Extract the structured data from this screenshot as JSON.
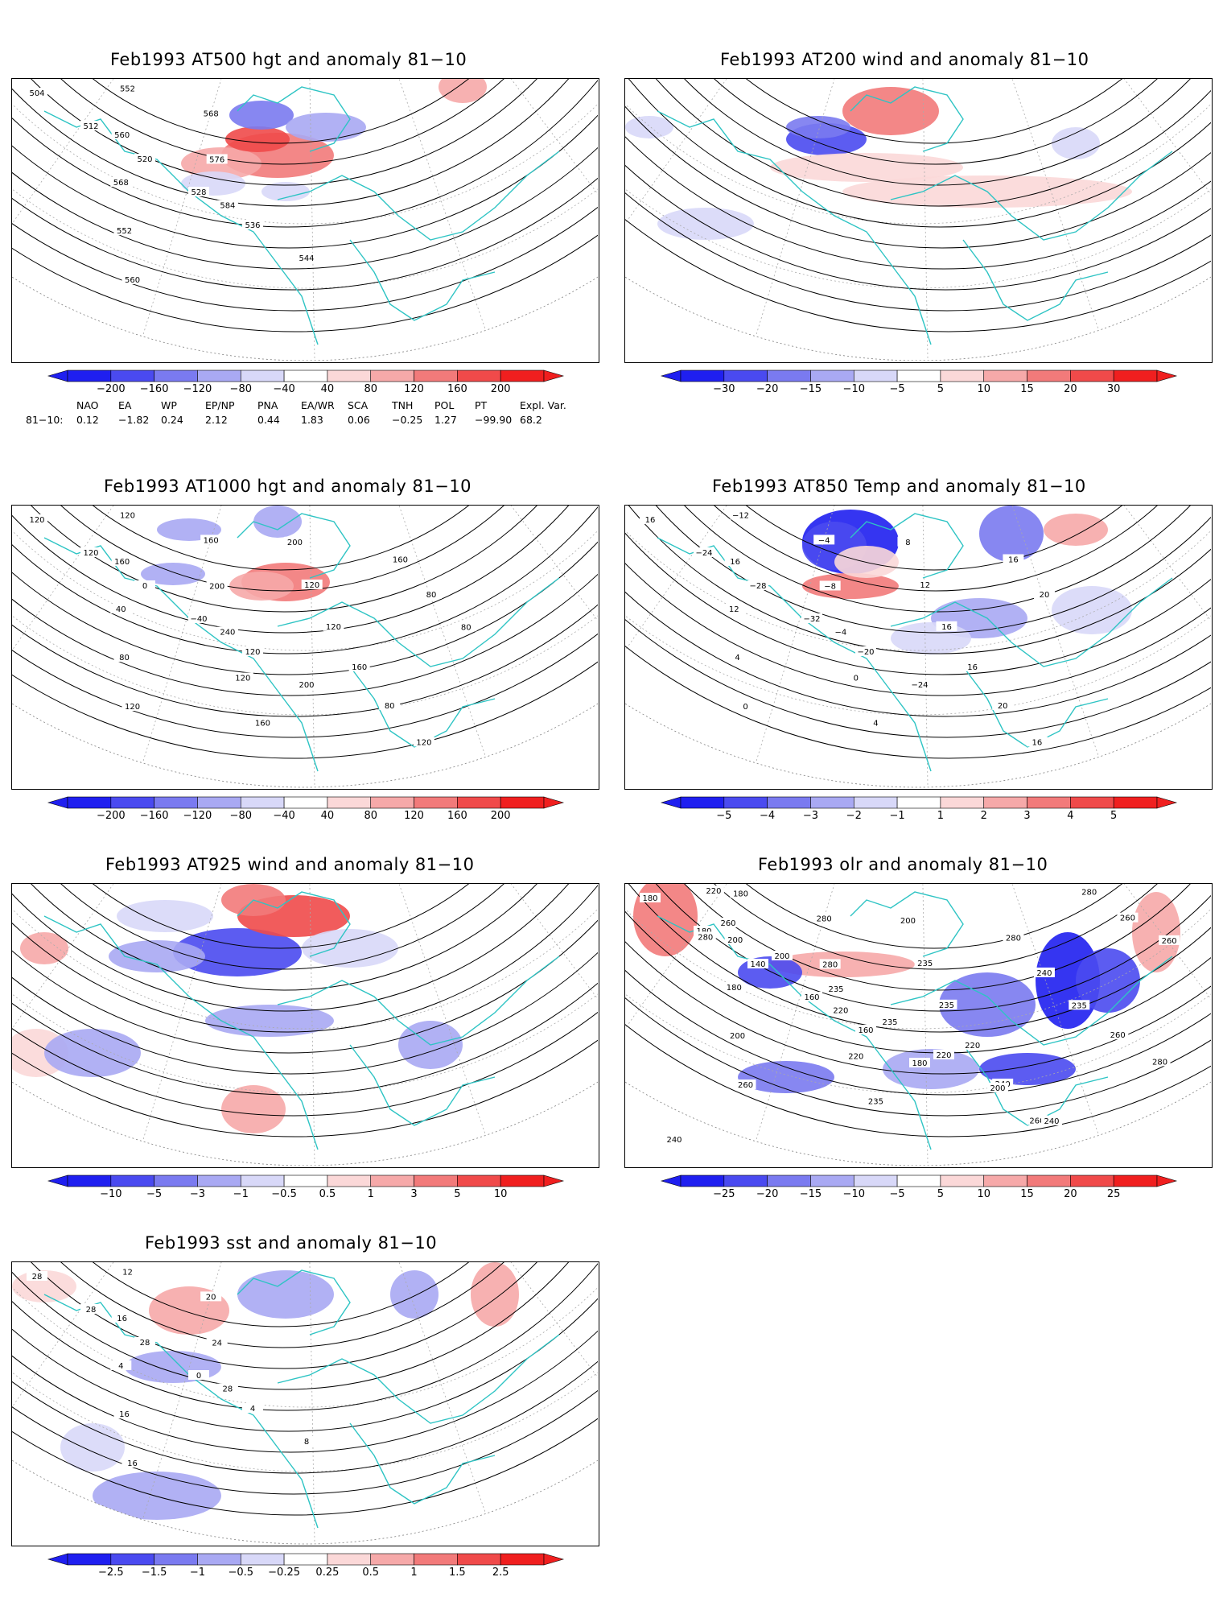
{
  "palette": {
    "coast": "#2ec4c4",
    "contour": "#000000",
    "neg": [
      "#1f1ff0",
      "#4a4af0",
      "#7a7af0",
      "#a9a9f3",
      "#d8d8f8"
    ],
    "pos": [
      "#fbd8d8",
      "#f6a9a9",
      "#f27a7a",
      "#f04a4a",
      "#f01f1f"
    ]
  },
  "panels": [
    {
      "id": "p1",
      "title": "Feb1993 AT500 hgt and anomaly 81−10",
      "colorbar": [
        "−200",
        "−160",
        "−120",
        "−80",
        "−40",
        "40",
        "80",
        "120",
        "160",
        "200"
      ],
      "map_labels": [
        "504",
        "512",
        "520",
        "528",
        "536",
        "544",
        "552",
        "560",
        "568",
        "552",
        "560",
        "568",
        "576",
        "584"
      ],
      "icon": "hemispheric-map-500hgt"
    },
    {
      "id": "p2",
      "title": "Feb1993 AT200 wind and anomaly 81−10",
      "colorbar": [
        "−30",
        "−20",
        "−15",
        "−10",
        "−5",
        "5",
        "10",
        "15",
        "20",
        "30"
      ],
      "map_labels": [],
      "icon": "hemispheric-map-200wind"
    },
    {
      "id": "p3",
      "title": "Feb1993 AT1000 hgt and anomaly 81−10",
      "colorbar": [
        "−200",
        "−160",
        "−120",
        "−80",
        "−40",
        "40",
        "80",
        "120",
        "160",
        "200"
      ],
      "map_labels": [
        "120",
        "120",
        "0",
        "−40",
        "120",
        "200",
        "120",
        "160",
        "40",
        "80",
        "120",
        "160",
        "200",
        "240",
        "120",
        "160",
        "200",
        "120",
        "120",
        "160",
        "80",
        "120",
        "160",
        "80",
        "80"
      ],
      "icon": "hemispheric-map-1000hgt"
    },
    {
      "id": "p4",
      "title": "Feb1993 AT850 Temp and anomaly 81−10",
      "colorbar": [
        "−5",
        "−4",
        "−3",
        "−2",
        "−1",
        "1",
        "2",
        "3",
        "4",
        "5"
      ],
      "map_labels": [
        "16",
        "−24",
        "−28",
        "−32",
        "−20",
        "−24",
        "−12",
        "16",
        "12",
        "4",
        "0",
        "−4",
        "−8",
        "−4",
        "0",
        "4",
        "8",
        "12",
        "16",
        "16",
        "20",
        "16",
        "16",
        "20"
      ],
      "icon": "hemispheric-map-850temp"
    },
    {
      "id": "p5",
      "title": "Feb1993 AT925 wind and anomaly 81−10",
      "colorbar": [
        "−10",
        "−5",
        "−3",
        "−1",
        "−0.5",
        "0.5",
        "1",
        "3",
        "5",
        "10"
      ],
      "map_labels": [],
      "icon": "hemispheric-map-925wind"
    },
    {
      "id": "p6",
      "title": "Feb1993 olr and anomaly 81−10",
      "colorbar": [
        "−25",
        "−20",
        "−15",
        "−10",
        "−5",
        "5",
        "10",
        "15",
        "20",
        "25"
      ],
      "map_labels": [
        "180",
        "180",
        "140",
        "160",
        "160",
        "180",
        "180",
        "200",
        "180",
        "200",
        "260",
        "280",
        "280",
        "220",
        "220",
        "235",
        "200",
        "235",
        "235",
        "220",
        "240",
        "260",
        "280",
        "240",
        "235",
        "260",
        "280",
        "280",
        "260",
        "260",
        "240",
        "260",
        "200",
        "235",
        "235",
        "220",
        "200",
        "240",
        "220",
        "280"
      ],
      "icon": "hemispheric-map-olr"
    },
    {
      "id": "p7",
      "title": "Feb1993 sst and anomaly 81−10",
      "colorbar": [
        "−2.5",
        "−1.5",
        "−1",
        "−0.5",
        "−0.25",
        "0.25",
        "0.5",
        "1",
        "1.5",
        "2.5"
      ],
      "map_labels": [
        "28",
        "28",
        "28",
        "0",
        "4",
        "8",
        "12",
        "16",
        "4",
        "16",
        "16",
        "20",
        "24",
        "28"
      ],
      "icon": "hemispheric-map-sst"
    }
  ],
  "teleconnections": {
    "headers": [
      "NAO",
      "EA",
      "WP",
      "EP/NP",
      "PNA",
      "EA/WR",
      "SCA",
      "TNH",
      "POL",
      "PT",
      "Expl. Var."
    ],
    "row_label": "81−10:",
    "values": [
      "0.12",
      "−1.82",
      "0.24",
      "2.12",
      "0.44",
      "1.83",
      "0.06",
      "−0.25",
      "1.27",
      "−99.90",
      "68.2"
    ]
  }
}
